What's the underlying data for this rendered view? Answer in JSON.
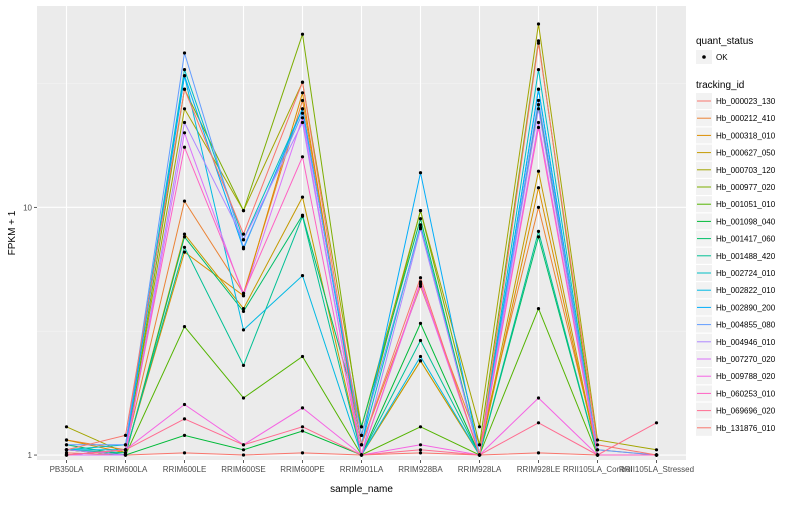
{
  "chart_data": {
    "type": "line",
    "xlabel": "sample_name",
    "ylabel": "FPKM + 1",
    "y_scale": "log10",
    "ylim": [
      0.955,
      65
    ],
    "y_ticks": [
      {
        "value": 1,
        "label": "1"
      },
      {
        "value": 10,
        "label": "10"
      }
    ],
    "categories": [
      "PB350LA",
      "RRIM600LA",
      "RRIM600LE",
      "RRIM600SE",
      "RRIM600PE",
      "RRIM901LA",
      "RRIM928BA",
      "RRIM928LA",
      "RRIM928LE",
      "RRII105LA_Control",
      "RRII105LA_Stressed"
    ],
    "grid": true,
    "background": "#ebebeb",
    "legends": [
      {
        "title": "quant_status",
        "entries": [
          {
            "label": "OK",
            "shape": "point"
          }
        ]
      },
      {
        "title": "tracking_id",
        "entries_from_series": true
      }
    ],
    "legend_position": "right",
    "series": [
      {
        "name": "Hb_000023_130",
        "color": "#F8766D",
        "values": [
          1.02,
          1.0,
          1.02,
          1.0,
          1.02,
          1.0,
          1.02,
          1.0,
          1.02,
          1.0,
          1.0
        ]
      },
      {
        "name": "Hb_000212_410",
        "color": "#EB8335",
        "values": [
          1.15,
          1.05,
          10.6,
          4.5,
          27,
          1.1,
          4.8,
          1.1,
          10,
          1.05,
          1.0
        ]
      },
      {
        "name": "Hb_000318_010",
        "color": "#DB8E00",
        "values": [
          1.15,
          1.02,
          6.6,
          4.4,
          29,
          1.0,
          2.4,
          1.0,
          12,
          1.0,
          1.0
        ]
      },
      {
        "name": "Hb_000627_050",
        "color": "#C49A00",
        "values": [
          1.05,
          1.0,
          7.8,
          3.9,
          11,
          1.0,
          2.4,
          1.0,
          14,
          1.0,
          1.0
        ]
      },
      {
        "name": "Hb_000703_120",
        "color": "#A3A500",
        "values": [
          1.3,
          1.02,
          25,
          9.7,
          32,
          1.3,
          9.7,
          1.3,
          55,
          1.15,
          1.05
        ]
      },
      {
        "name": "Hb_000977_020",
        "color": "#7CAE00",
        "values": [
          1.05,
          1.0,
          30,
          9.7,
          50,
          1.2,
          9.7,
          1.1,
          47,
          1.0,
          1.0
        ]
      },
      {
        "name": "Hb_001051_010",
        "color": "#53B400",
        "values": [
          1.0,
          1.0,
          3.3,
          1.7,
          2.5,
          1.0,
          1.3,
          1.0,
          3.9,
          1.0,
          1.0
        ]
      },
      {
        "name": "Hb_001098_040",
        "color": "#00BA38",
        "values": [
          1.05,
          1.0,
          1.2,
          1.05,
          1.25,
          1.0,
          3.4,
          1.0,
          26,
          1.0,
          1.0
        ]
      },
      {
        "name": "Hb_001417_060",
        "color": "#00BE67",
        "values": [
          1.1,
          1.0,
          7.6,
          3.8,
          9.3,
          1.3,
          9.0,
          1.0,
          7.6,
          1.0,
          1.0
        ]
      },
      {
        "name": "Hb_001488_420",
        "color": "#00C094",
        "values": [
          1.05,
          1.02,
          6.9,
          2.3,
          9.2,
          1.0,
          2.9,
          1.0,
          8.0,
          1.0,
          1.0
        ]
      },
      {
        "name": "Hb_002724_010",
        "color": "#00BFC4",
        "values": [
          1.05,
          1.1,
          36,
          7.4,
          25,
          1.1,
          8.5,
          1.0,
          36,
          1.0,
          1.0
        ]
      },
      {
        "name": "Hb_002822_010",
        "color": "#00B9E3",
        "values": [
          1.05,
          1.05,
          34,
          3.2,
          5.3,
          1.0,
          2.5,
          1.0,
          30,
          1.0,
          1.0
        ]
      },
      {
        "name": "Hb_002890_200",
        "color": "#00ADFA",
        "values": [
          1.0,
          1.05,
          34,
          6.8,
          25,
          1.1,
          13.8,
          1.0,
          30,
          1.0,
          1.0
        ]
      },
      {
        "name": "Hb_004855_080",
        "color": "#619CFF",
        "values": [
          1.1,
          1.1,
          42,
          6.9,
          24,
          1.2,
          8.3,
          1.0,
          27,
          1.05,
          1.0
        ]
      },
      {
        "name": "Hb_004946_010",
        "color": "#AE87FF",
        "values": [
          1.05,
          1.0,
          22,
          7.4,
          22,
          1.0,
          8.2,
          1.0,
          25,
          1.0,
          1.0
        ]
      },
      {
        "name": "Hb_007270_020",
        "color": "#DB72FB",
        "values": [
          1.0,
          1.0,
          20,
          4.4,
          23,
          1.0,
          4.9,
          1.0,
          22,
          1.0,
          1.0
        ]
      },
      {
        "name": "Hb_009788_020",
        "color": "#F564E3",
        "values": [
          1.0,
          1.05,
          1.6,
          1.1,
          1.55,
          1.0,
          1.1,
          1.0,
          1.7,
          1.0,
          1.0
        ]
      },
      {
        "name": "Hb_060253_010",
        "color": "#FF61C3",
        "values": [
          1.0,
          1.05,
          17.5,
          4.5,
          16,
          1.0,
          5.0,
          1.0,
          21,
          1.0,
          1.0
        ]
      },
      {
        "name": "Hb_069696_020",
        "color": "#FF6C91",
        "values": [
          1.0,
          1.05,
          1.4,
          1.1,
          1.3,
          1.0,
          1.05,
          1.0,
          1.35,
          1.0,
          1.35
        ]
      },
      {
        "name": "Hb_131876_010",
        "color": "#F8766D",
        "values": [
          1.05,
          1.2,
          30,
          7.8,
          32,
          1.1,
          5.2,
          1.0,
          46,
          1.1,
          1.0
        ]
      }
    ]
  }
}
